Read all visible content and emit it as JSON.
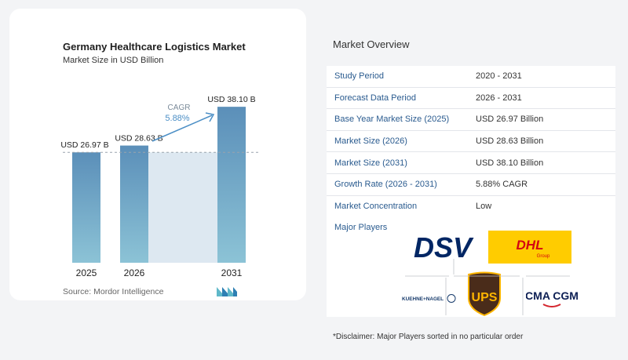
{
  "chart_data": {
    "type": "bar",
    "title": "Germany Healthcare Logistics Market",
    "subtitle": "Market Size in USD Billion",
    "categories": [
      "2025",
      "2026",
      "2031"
    ],
    "values": [
      26.97,
      28.63,
      38.1
    ],
    "data_labels": [
      "USD 26.97 B",
      "USD 28.63 B",
      "USD 38.10 B"
    ],
    "cagr_label": "CAGR",
    "cagr_value": "5.88%",
    "ylim": [
      0,
      40
    ],
    "colors": {
      "bar_top": "#5b8fb9",
      "bar_bottom": "#8cc3d6",
      "band": "#dde8f1",
      "arrow": "#4c8fc6"
    }
  },
  "source": "Source:",
  "source_name": "Mordor Intelligence",
  "overview": {
    "title": "Market Overview",
    "rows": [
      {
        "label": "Study Period",
        "value": "2020 - 2031"
      },
      {
        "label": "Forecast Data Period",
        "value": "2026 - 2031"
      },
      {
        "label": "Base Year Market Size (2025)",
        "value": "USD 26.97 Billion"
      },
      {
        "label": "Market Size (2026)",
        "value": "USD 28.63 Billion"
      },
      {
        "label": "Market Size (2031)",
        "value": "USD 38.10 Billion"
      },
      {
        "label": "Growth Rate (2026 - 2031)",
        "value": "5.88% CAGR"
      },
      {
        "label": "Market Concentration",
        "value": "Low"
      }
    ],
    "players_title": "Major Players",
    "players": {
      "dsv": "DSV",
      "dhl": "DHL",
      "dhl_group": "Group",
      "kuehne": "KUEHNE+NAGEL",
      "ups": "UPS",
      "cma": "CMA CGM"
    }
  },
  "disclaimer": "*Disclaimer: Major Players sorted in no particular order"
}
